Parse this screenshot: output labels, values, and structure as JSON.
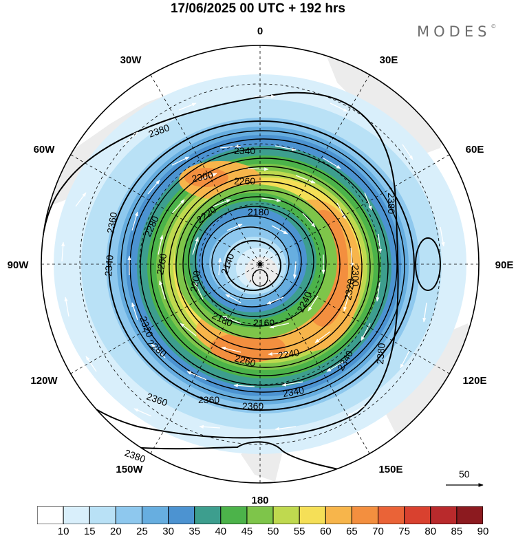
{
  "title": "17/06/2025  00 UTC  + 192 hrs",
  "brand": {
    "name": "MODES",
    "mark": "©"
  },
  "reference_vector": {
    "label": "50"
  },
  "longitude_labels": {
    "lon_0": "0",
    "lon_30e": "30E",
    "lon_60e": "60E",
    "lon_90e": "90E",
    "lon_120e": "120E",
    "lon_150e": "150E",
    "lon_180": "180",
    "lon_150w": "150W",
    "lon_120w": "120W",
    "lon_90w": "90W",
    "lon_60w": "60W",
    "lon_30w": "30W"
  },
  "contour_labels": {
    "c2380a": "2380",
    "c2340a": "2340",
    "c2300a": "2300",
    "c2260a": "2260",
    "c2360a": "2360",
    "c2280a": "2280",
    "c2220a": "2220",
    "c2180a": "2180",
    "c2340b": "2340",
    "c2260b": "2260",
    "c2140": "2140",
    "c2200a": "2200",
    "c2320a": "2320",
    "c2240a": "2240",
    "c2300b": "2300",
    "c2320b": "2320",
    "c2380b": "2380",
    "c2180b": "2180",
    "c2160": "2160",
    "c2280b": "2280",
    "c2260c": "2260",
    "c2240b": "2240",
    "c2340c": "2340",
    "c2340d": "2340",
    "c2360b": "2360",
    "c2360c": "2360",
    "c2360d": "2360",
    "c2380c": "2380"
  },
  "colorbar": {
    "ticks": [
      "10",
      "15",
      "20",
      "25",
      "30",
      "35",
      "40",
      "45",
      "50",
      "55",
      "60",
      "65",
      "70",
      "75",
      "80",
      "85",
      "90"
    ],
    "colors": [
      "#ffffff",
      "#d9effb",
      "#b9e1f6",
      "#8ec8ee",
      "#67aee0",
      "#4c93d1",
      "#3d9e8e",
      "#4cb34a",
      "#7ec54a",
      "#bfd94f",
      "#f5df57",
      "#f7b54b",
      "#f38f3f",
      "#ea6337",
      "#d9412f",
      "#b92a2c",
      "#8c1a1f"
    ]
  },
  "colors": {
    "land": "#ececec",
    "contour": "#000000",
    "arrow": "#ffffff"
  }
}
